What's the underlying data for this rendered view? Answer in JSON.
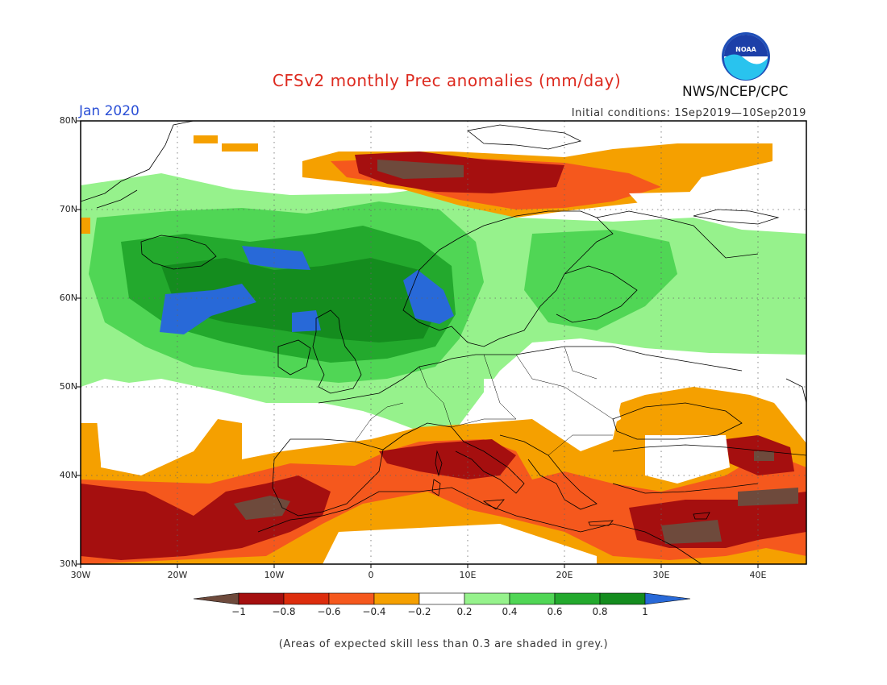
{
  "header": {
    "title": "CFSv2 monthly Prec anomalies (mm/day)",
    "agency": "NWS/NCEP/CPC",
    "logo_text": "NOAA",
    "valid_month": "Jan 2020",
    "initial_conditions": "Initial conditions: 1Sep2019—10Sep2019"
  },
  "map": {
    "projection": "lat-lon",
    "lat_range": [
      30,
      80
    ],
    "lon_range": [
      -30,
      45
    ],
    "lat_ticks": [
      "30N",
      "40N",
      "50N",
      "60N",
      "70N",
      "80N"
    ],
    "lon_ticks": [
      "30W",
      "20W",
      "10W",
      "0",
      "10E",
      "20E",
      "30E",
      "40E"
    ],
    "gridlines": "dotted every 10 degrees",
    "anomaly_regions": [
      {
        "area": "Norwegian Sea / around Iceland",
        "category": "wet",
        "level": "0.2 to 1+"
      },
      {
        "area": "North Atlantic west of British Isles",
        "category": "wet",
        "level": "0.6 to 1+"
      },
      {
        "area": "Norway coast and North Sea",
        "category": "wet",
        "level": "0.8 to 1+"
      },
      {
        "area": "Scandinavia, Baltic and western Russia",
        "category": "wet",
        "level": "0.2 to 0.6"
      },
      {
        "area": "Barents Sea / north of Norway",
        "category": "dry",
        "level": "-0.2 to -1"
      },
      {
        "area": "Mediterranean and North Africa",
        "category": "dry",
        "level": "-0.2 to -1"
      },
      {
        "area": "Atlantic west of Iberia and Azores",
        "category": "dry",
        "level": "-0.2 to -1"
      },
      {
        "area": "Turkey and Eastern Mediterranean",
        "category": "dry",
        "level": "-0.2 to -1"
      }
    ]
  },
  "colorbar": {
    "ticks": [
      "−1",
      "−0.8",
      "−0.6",
      "−0.4",
      "−0.2",
      "0.2",
      "0.4",
      "0.6",
      "0.8",
      "1"
    ],
    "colors": [
      "#6e4a3c",
      "#a50f0f",
      "#dd2d0d",
      "#f5581d",
      "#f5a000",
      "#ffffff",
      "#96f28c",
      "#50d655",
      "#23a92d",
      "#148c1e",
      "#2869d8"
    ]
  },
  "footnote": "(Areas of expected skill less than 0.3 are shaded in grey.)"
}
